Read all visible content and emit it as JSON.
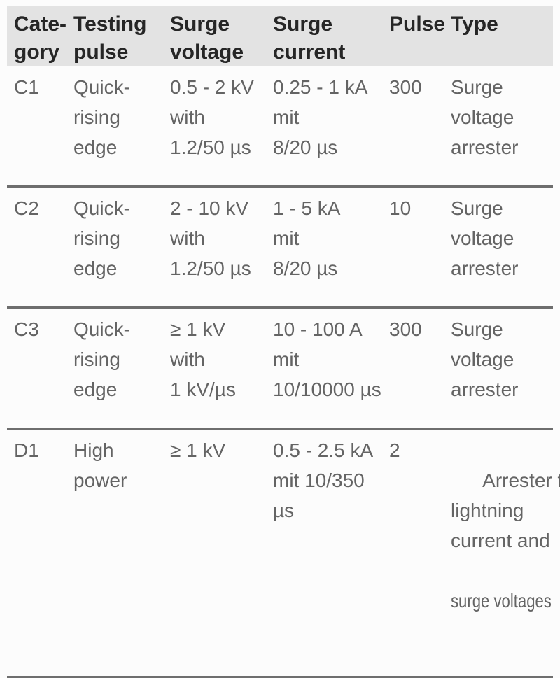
{
  "colors": {
    "header_bg": "#e3e3e3",
    "header_text": "#262626",
    "body_text": "#646464",
    "rule": "#6e6e6e",
    "page_bg": "#fcfcfc"
  },
  "table": {
    "header": {
      "category": "Cate-\ngory",
      "testing_pulse": "Testing\npulse",
      "surge_voltage": "Surge\nvoltage",
      "surge_current": "Surge\ncurrent",
      "pulse": "Pulse",
      "type": "Type"
    },
    "rows": [
      {
        "category": "C1",
        "testing_pulse": "Quick-\nrising\nedge",
        "surge_voltage": "0.5 - 2 kV\nwith\n1.2/50 µs",
        "surge_current": "0.25 - 1 kA\nmit\n8/20 µs",
        "pulse": "300",
        "type": "Surge\nvoltage\narrester"
      },
      {
        "category": "C2",
        "testing_pulse": "Quick-\nrising\nedge",
        "surge_voltage": "2 - 10 kV\nwith\n1.2/50 µs",
        "surge_current": "1 - 5 kA\nmit\n8/20 µs",
        "pulse": "10",
        "type": "Surge\nvoltage\narrester"
      },
      {
        "category": "C3",
        "testing_pulse": "Quick-\nrising\nedge",
        "surge_voltage": "≥ 1 kV\nwith\n1 kV/µs",
        "surge_current": "10 - 100 A\nmit\n10/10000 µs",
        "pulse": "300",
        "type": "Surge\nvoltage\narrester"
      },
      {
        "category": "D1",
        "testing_pulse": "High\npower",
        "surge_voltage": "≥ 1 kV",
        "surge_current": "0.5 - 2.5 kA\nmit 10/350\nµs",
        "pulse": "2",
        "type": "Arrester for\nlightning\ncurrent and",
        "type_overflow": "surge voltages"
      }
    ]
  }
}
